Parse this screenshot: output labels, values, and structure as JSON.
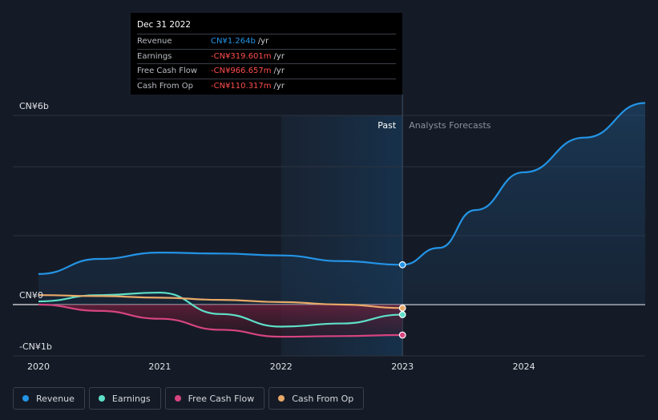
{
  "tooltip": {
    "date": "Dec 31 2022",
    "rows": [
      {
        "label": "Revenue",
        "value": "CN¥1.264b",
        "unit": "/yr",
        "sign": "pos"
      },
      {
        "label": "Earnings",
        "value": "-CN¥319.601m",
        "unit": "/yr",
        "sign": "neg"
      },
      {
        "label": "Free Cash Flow",
        "value": "-CN¥966.657m",
        "unit": "/yr",
        "sign": "neg"
      },
      {
        "label": "Cash From Op",
        "value": "-CN¥110.317m",
        "unit": "/yr",
        "sign": "neg"
      }
    ]
  },
  "legend": [
    {
      "label": "Revenue",
      "color": "#2394e6"
    },
    {
      "label": "Earnings",
      "color": "#5ee0c8"
    },
    {
      "label": "Free Cash Flow",
      "color": "#d6447f"
    },
    {
      "label": "Cash From Op",
      "color": "#e8a968"
    }
  ],
  "chart_data": {
    "type": "line",
    "y_labels": {
      "top": "CN¥6b",
      "zero": "CN¥0",
      "bottom": "-CN¥1b"
    },
    "ylim": [
      -1.5,
      6.5
    ],
    "xlim": [
      2020,
      2025.0
    ],
    "x_ticks": [
      {
        "value": 2020,
        "label": "2020"
      },
      {
        "value": 2021,
        "label": "2021"
      },
      {
        "value": 2022,
        "label": "2022"
      },
      {
        "value": 2023,
        "label": "2023"
      },
      {
        "value": 2024,
        "label": "2024"
      }
    ],
    "divider": {
      "x": 2023.0,
      "past_label": "Past",
      "forecast_label": "Analysts Forecasts"
    },
    "highlight_start": 2022.0,
    "grid_values": [
      6,
      4,
      2
    ],
    "series": [
      {
        "name": "Revenue",
        "color": "#2394e6",
        "fill": true,
        "points": [
          [
            2020.0,
            0.97
          ],
          [
            2020.5,
            1.45
          ],
          [
            2021.0,
            1.65
          ],
          [
            2021.5,
            1.62
          ],
          [
            2022.0,
            1.56
          ],
          [
            2022.5,
            1.38
          ],
          [
            2023.0,
            1.264
          ]
        ],
        "forecast": [
          [
            2023.0,
            1.264
          ],
          [
            2023.3,
            1.8
          ],
          [
            2023.6,
            3.0
          ],
          [
            2024.0,
            4.2
          ],
          [
            2024.5,
            5.3
          ],
          [
            2025.0,
            6.4
          ]
        ],
        "end_marker": true
      },
      {
        "name": "Earnings",
        "color": "#5ee0c8",
        "fill": false,
        "points": [
          [
            2020.0,
            0.1
          ],
          [
            2020.5,
            0.3
          ],
          [
            2021.0,
            0.38
          ],
          [
            2021.5,
            -0.3
          ],
          [
            2022.0,
            -0.7
          ],
          [
            2022.5,
            -0.6
          ],
          [
            2023.0,
            -0.3196
          ]
        ],
        "end_marker": true
      },
      {
        "name": "Free Cash Flow",
        "color": "#d6447f",
        "fill": true,
        "points": [
          [
            2020.0,
            0.0
          ],
          [
            2020.5,
            -0.2
          ],
          [
            2021.0,
            -0.45
          ],
          [
            2021.5,
            -0.8
          ],
          [
            2022.0,
            -1.02
          ],
          [
            2022.5,
            -1.0
          ],
          [
            2023.0,
            -0.967
          ]
        ],
        "end_marker": true
      },
      {
        "name": "Cash From Op",
        "color": "#e8a968",
        "fill": false,
        "points": [
          [
            2020.0,
            0.3
          ],
          [
            2020.5,
            0.27
          ],
          [
            2021.0,
            0.22
          ],
          [
            2021.5,
            0.15
          ],
          [
            2022.0,
            0.08
          ],
          [
            2022.5,
            0.0
          ],
          [
            2023.0,
            -0.1103
          ]
        ],
        "end_marker": true
      }
    ]
  }
}
